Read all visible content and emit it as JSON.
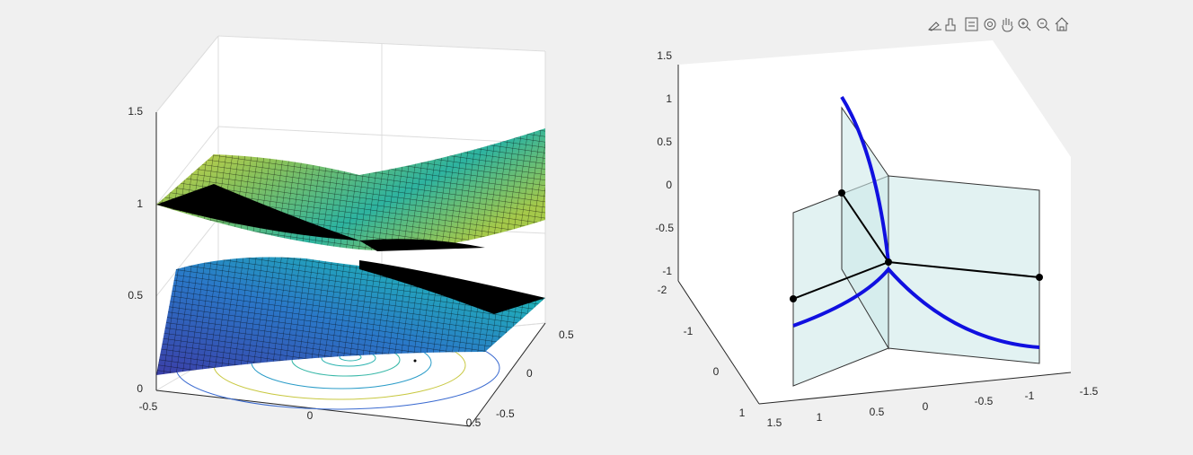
{
  "left_axes": {
    "z_ticks": [
      "0",
      "0.5",
      "1",
      "1.5"
    ],
    "x_ticks": [
      "-0.5",
      "0",
      "0.5"
    ],
    "y_ticks": [
      "0.5",
      "0",
      "-0.5"
    ]
  },
  "right_axes": {
    "z_ticks": [
      "1.5",
      "1",
      "0.5",
      "0",
      "-0.5",
      "-1"
    ],
    "y_ticks": [
      "-2",
      "-1",
      "0",
      "1"
    ],
    "x_ticks": [
      "1.5",
      "1",
      "0.5",
      "0",
      "-0.5",
      "-1",
      "-1.5"
    ]
  }
}
